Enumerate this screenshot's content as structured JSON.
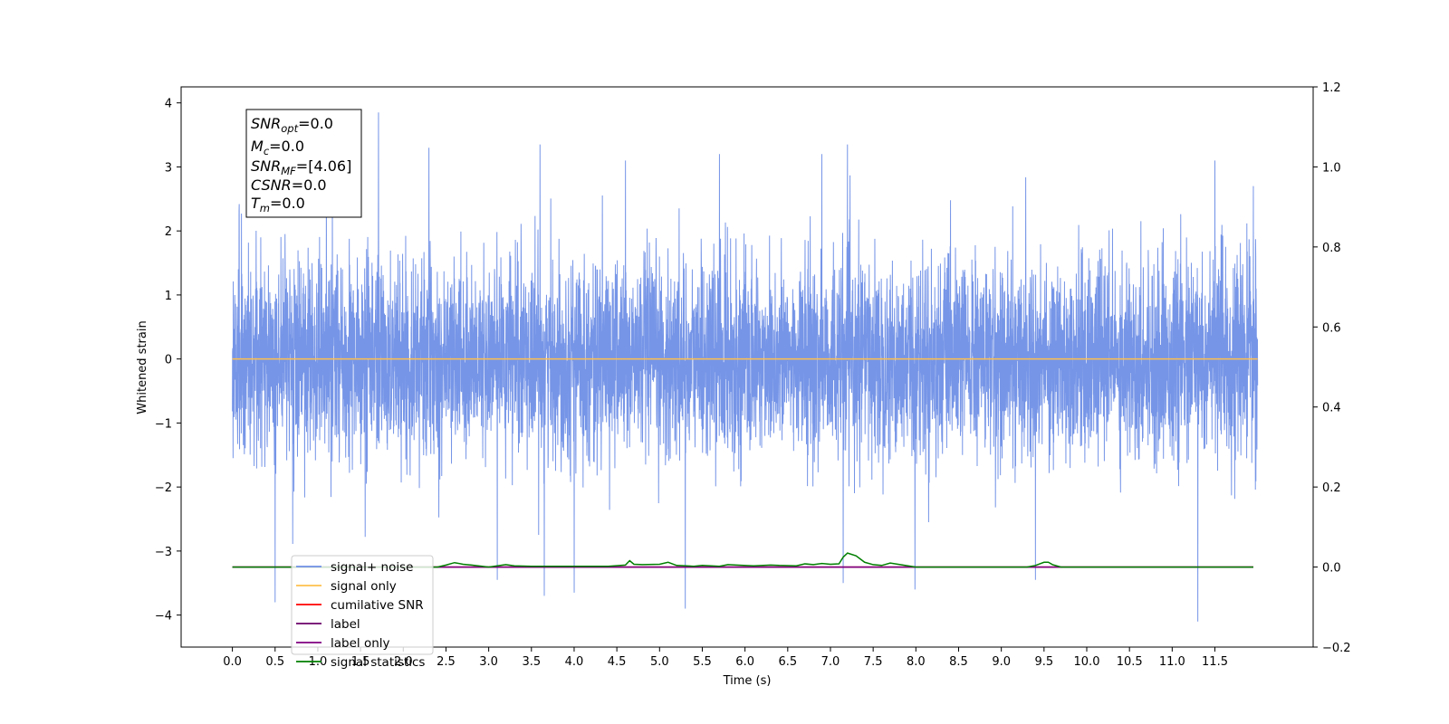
{
  "chart_data": {
    "type": "line",
    "xlabel": "Time (s)",
    "ylabel": "Whitened strain",
    "xlim": [
      -0.6,
      12.65
    ],
    "ylim": [
      -4.5,
      4.25
    ],
    "y2lim": [
      -0.2,
      1.2
    ],
    "x_ticks": [
      0.0,
      0.5,
      1.0,
      1.5,
      2.0,
      2.5,
      3.0,
      3.5,
      4.0,
      4.5,
      5.0,
      5.5,
      6.0,
      6.5,
      7.0,
      7.5,
      8.0,
      8.5,
      9.0,
      9.5,
      10.0,
      10.5,
      11.0,
      11.5
    ],
    "x_tick_labels": [
      "0.0",
      "0.5",
      "1.0",
      "1.5",
      "2.0",
      "2.5",
      "3.0",
      "3.5",
      "4.0",
      "4.5",
      "5.0",
      "5.5",
      "6.0",
      "6.5",
      "7.0",
      "7.5",
      "8.0",
      "8.5",
      "9.0",
      "9.5",
      "10.0",
      "10.5",
      "11.0",
      "11.5"
    ],
    "y_ticks": [
      4,
      3,
      2,
      1,
      0,
      -1,
      -2,
      -3,
      -4
    ],
    "y_tick_labels": [
      "4",
      "3",
      "2",
      "1",
      "0",
      "−1",
      "−2",
      "−3",
      "−4"
    ],
    "y2_ticks": [
      1.2,
      1.0,
      0.8,
      0.6,
      0.4,
      0.2,
      0.0,
      -0.2
    ],
    "y2_tick_labels": [
      "1.2",
      "1.0",
      "0.8",
      "0.6",
      "0.4",
      "0.2",
      "0.0",
      "−0.2"
    ],
    "grid": false,
    "legend_position": "lower-left",
    "series": [
      {
        "name": "signal+ noise",
        "color": "#6f8fe6",
        "axis": "left",
        "x_range": [
          0.0,
          12.0
        ],
        "noise_std": 0.75,
        "peaks": [
          {
            "x": 0.08,
            "y": 2.42
          },
          {
            "x": 0.5,
            "y": -3.8
          },
          {
            "x": 1.1,
            "y": 3.1
          },
          {
            "x": 1.71,
            "y": 3.85
          },
          {
            "x": 2.3,
            "y": 3.3
          },
          {
            "x": 3.1,
            "y": -3.45
          },
          {
            "x": 3.6,
            "y": 3.35
          },
          {
            "x": 3.65,
            "y": -3.7
          },
          {
            "x": 4.0,
            "y": -3.65
          },
          {
            "x": 4.6,
            "y": 3.1
          },
          {
            "x": 5.3,
            "y": -3.9
          },
          {
            "x": 5.7,
            "y": 3.2
          },
          {
            "x": 6.9,
            "y": 3.2
          },
          {
            "x": 7.2,
            "y": 3.35
          },
          {
            "x": 7.15,
            "y": -3.5
          },
          {
            "x": 7.99,
            "y": -3.6
          },
          {
            "x": 9.4,
            "y": 3.3
          },
          {
            "x": 9.4,
            "y": -3.45
          },
          {
            "x": 11.3,
            "y": -4.1
          },
          {
            "x": 11.5,
            "y": 3.1
          },
          {
            "x": 11.95,
            "y": 2.7
          }
        ]
      },
      {
        "name": "signal only",
        "color": "#ffc04d",
        "axis": "left",
        "x": [
          0.0,
          12.0
        ],
        "values": [
          0.0,
          0.0
        ]
      },
      {
        "name": "cumilative SNR",
        "color": "#ff0000",
        "axis": "right",
        "x": [
          0.0,
          11.95
        ],
        "values": [
          0.0,
          0.0
        ]
      },
      {
        "name": "label",
        "color": "#6a006a",
        "axis": "right",
        "x": [
          0.0,
          11.95
        ],
        "values": [
          0.0,
          0.0
        ]
      },
      {
        "name": "label only",
        "color": "#800080",
        "axis": "right",
        "x": [
          0.0,
          11.95
        ],
        "values": [
          0.0,
          0.0
        ]
      },
      {
        "name": "signal statistics",
        "color": "#007f00",
        "axis": "right",
        "x": [
          0.0,
          2.4,
          2.5,
          2.6,
          2.7,
          2.8,
          3.0,
          3.2,
          3.3,
          3.5,
          4.4,
          4.6,
          4.65,
          4.7,
          4.8,
          5.0,
          5.1,
          5.2,
          5.4,
          5.5,
          5.7,
          5.8,
          5.9,
          6.1,
          6.3,
          6.4,
          6.6,
          6.7,
          6.8,
          6.9,
          7.0,
          7.1,
          7.15,
          7.2,
          7.3,
          7.4,
          7.5,
          7.6,
          7.7,
          8.0,
          9.3,
          9.4,
          9.5,
          9.55,
          9.6,
          9.7,
          9.8,
          11.95
        ],
        "values": [
          0.0,
          0.0,
          0.005,
          0.011,
          0.007,
          0.005,
          0.0,
          0.006,
          0.003,
          0.002,
          0.002,
          0.005,
          0.016,
          0.007,
          0.006,
          0.007,
          0.012,
          0.004,
          0.002,
          0.004,
          0.002,
          0.006,
          0.005,
          0.003,
          0.005,
          0.004,
          0.003,
          0.008,
          0.006,
          0.009,
          0.007,
          0.008,
          0.025,
          0.035,
          0.028,
          0.012,
          0.006,
          0.004,
          0.01,
          0.0,
          0.0,
          0.004,
          0.012,
          0.012,
          0.006,
          0.0,
          0.0,
          0.0
        ]
      }
    ],
    "stats_box": [
      {
        "base": "SNR",
        "sub": "opt",
        "value": "=0.0"
      },
      {
        "base": "M",
        "sub": "c",
        "value": "=0.0"
      },
      {
        "base": "SNR",
        "sub": "MF",
        "value": "=[4.06]"
      },
      {
        "base": "CSNR",
        "sub": "",
        "value": "=0.0"
      },
      {
        "base": "T",
        "sub": "m",
        "value": "=0.0"
      }
    ]
  }
}
